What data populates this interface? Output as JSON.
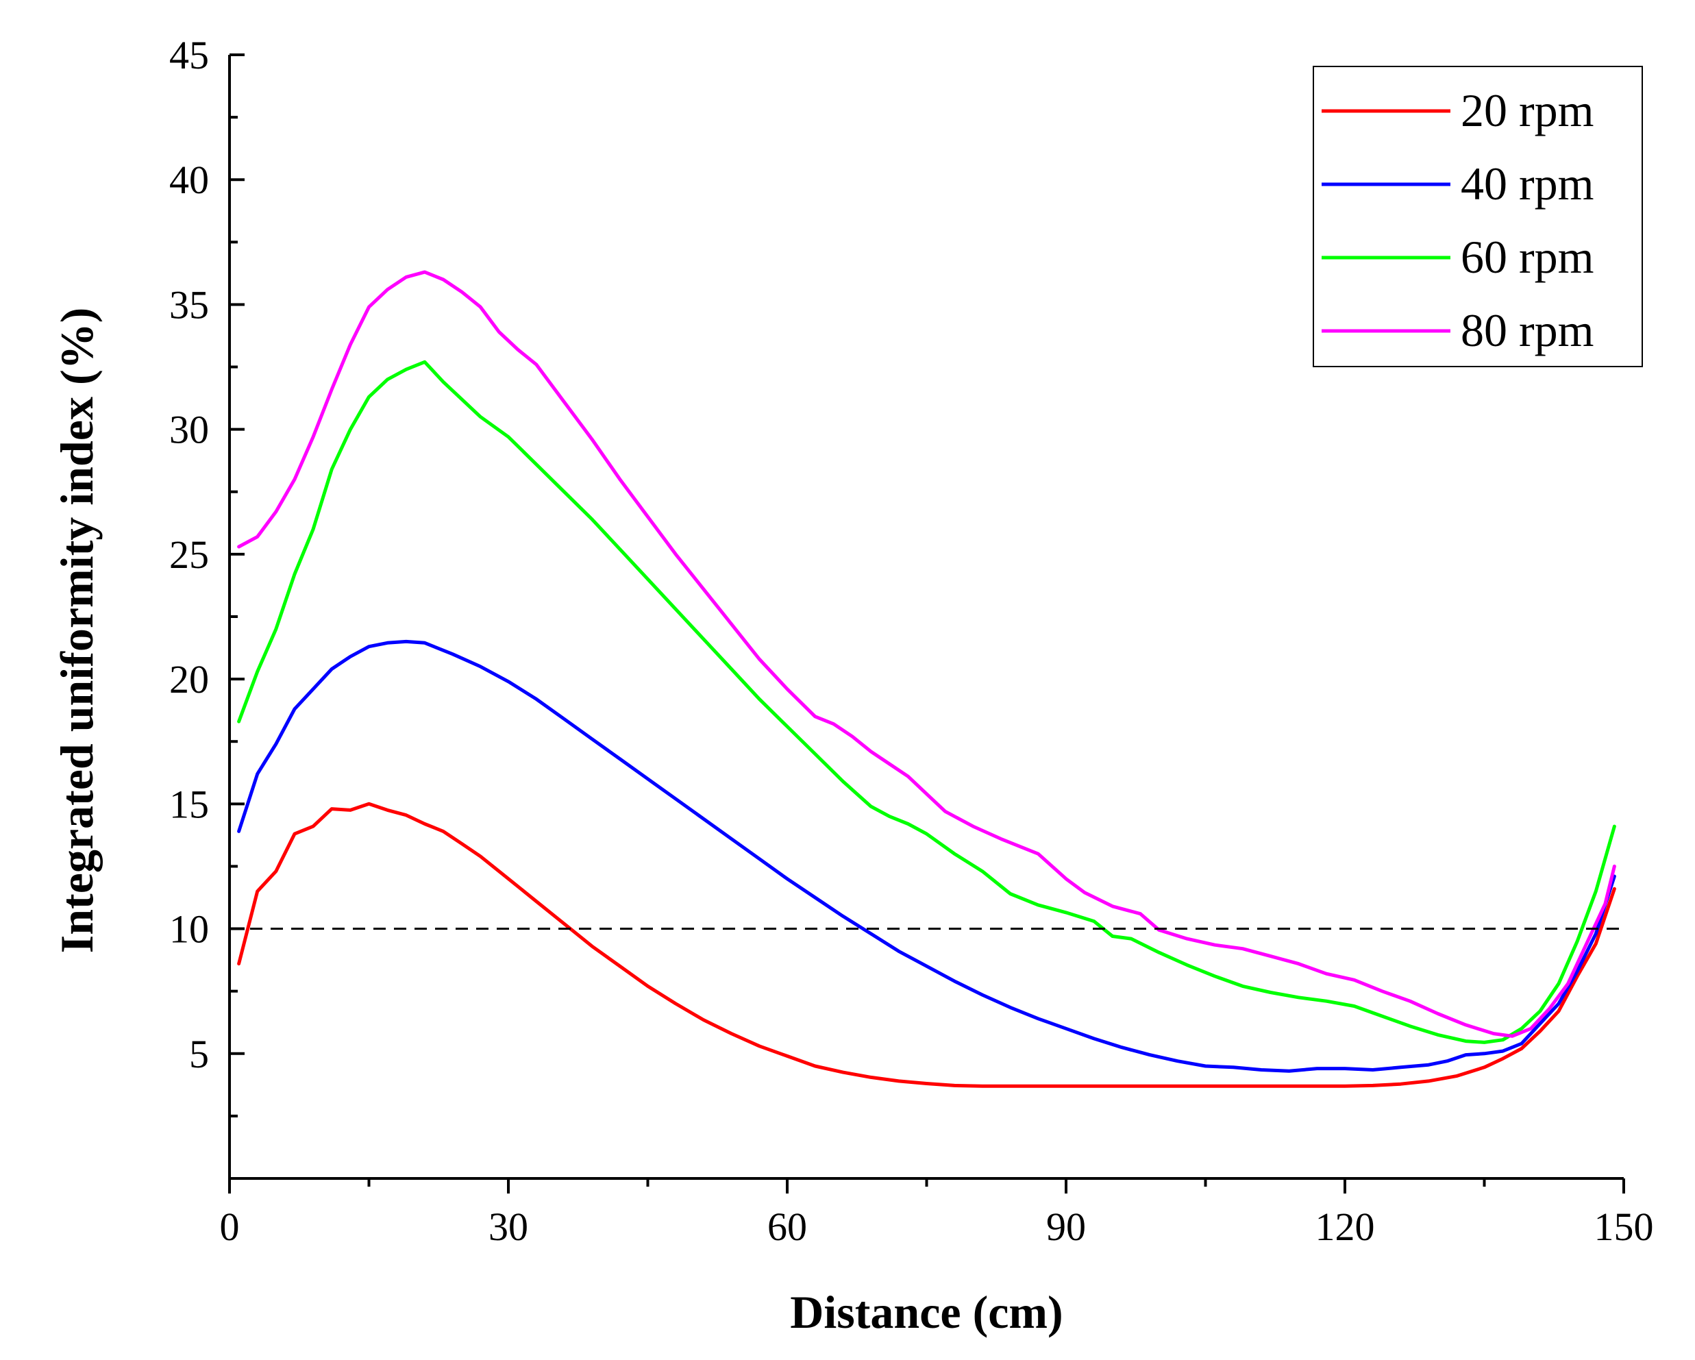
{
  "chart_data": {
    "type": "line",
    "title": "",
    "xlabel": "Distance (cm)",
    "ylabel": "Integrated uniformity index (%)",
    "xlim": [
      0,
      150
    ],
    "ylim": [
      0,
      45
    ],
    "xticks": [
      0,
      30,
      60,
      90,
      120,
      150
    ],
    "yticks": [
      5,
      10,
      15,
      20,
      25,
      30,
      35,
      40,
      45
    ],
    "xtick_labels": [
      "0",
      "30",
      "60",
      "90",
      "120",
      "150"
    ],
    "ytick_labels": [
      "5",
      "10",
      "15",
      "20",
      "25",
      "30",
      "35",
      "40",
      "45"
    ],
    "grid": false,
    "legend_position": "top-right",
    "reference_line": {
      "y": 10,
      "style": "dashed",
      "color": "#000000"
    },
    "series": [
      {
        "name": "20 rpm",
        "color": "#ff0000",
        "points": [
          [
            1,
            8.6
          ],
          [
            3,
            11.5
          ],
          [
            5,
            12.3
          ],
          [
            7,
            13.8
          ],
          [
            9,
            14.1
          ],
          [
            11,
            14.8
          ],
          [
            13,
            14.75
          ],
          [
            15,
            15.0
          ],
          [
            17,
            14.75
          ],
          [
            19,
            14.55
          ],
          [
            21,
            14.2
          ],
          [
            23,
            13.9
          ],
          [
            25,
            13.4
          ],
          [
            27,
            12.9
          ],
          [
            29,
            12.3
          ],
          [
            31,
            11.7
          ],
          [
            33,
            11.1
          ],
          [
            35,
            10.5
          ],
          [
            37,
            9.9
          ],
          [
            39,
            9.3
          ],
          [
            42,
            8.5
          ],
          [
            45,
            7.7
          ],
          [
            48,
            7.0
          ],
          [
            51,
            6.35
          ],
          [
            54,
            5.8
          ],
          [
            57,
            5.3
          ],
          [
            60,
            4.9
          ],
          [
            63,
            4.5
          ],
          [
            66,
            4.25
          ],
          [
            69,
            4.05
          ],
          [
            72,
            3.9
          ],
          [
            75,
            3.8
          ],
          [
            78,
            3.72
          ],
          [
            81,
            3.7
          ],
          [
            85,
            3.7
          ],
          [
            90,
            3.7
          ],
          [
            95,
            3.7
          ],
          [
            100,
            3.7
          ],
          [
            105,
            3.7
          ],
          [
            110,
            3.7
          ],
          [
            115,
            3.7
          ],
          [
            120,
            3.7
          ],
          [
            123,
            3.72
          ],
          [
            126,
            3.78
          ],
          [
            129,
            3.9
          ],
          [
            132,
            4.1
          ],
          [
            135,
            4.45
          ],
          [
            137,
            4.8
          ],
          [
            139,
            5.2
          ],
          [
            141,
            5.9
          ],
          [
            143,
            6.7
          ],
          [
            145,
            8.1
          ],
          [
            147,
            9.4
          ],
          [
            149,
            11.6
          ]
        ]
      },
      {
        "name": "40 rpm",
        "color": "#0000ff",
        "points": [
          [
            1,
            13.9
          ],
          [
            3,
            16.2
          ],
          [
            5,
            17.4
          ],
          [
            7,
            18.8
          ],
          [
            9,
            19.6
          ],
          [
            11,
            20.4
          ],
          [
            13,
            20.9
          ],
          [
            15,
            21.3
          ],
          [
            17,
            21.45
          ],
          [
            19,
            21.5
          ],
          [
            21,
            21.45
          ],
          [
            24,
            21.0
          ],
          [
            27,
            20.5
          ],
          [
            30,
            19.9
          ],
          [
            33,
            19.2
          ],
          [
            36,
            18.4
          ],
          [
            39,
            17.6
          ],
          [
            42,
            16.8
          ],
          [
            45,
            16.0
          ],
          [
            48,
            15.2
          ],
          [
            51,
            14.4
          ],
          [
            54,
            13.6
          ],
          [
            57,
            12.8
          ],
          [
            60,
            12.0
          ],
          [
            63,
            11.25
          ],
          [
            66,
            10.5
          ],
          [
            69,
            9.8
          ],
          [
            72,
            9.1
          ],
          [
            75,
            8.5
          ],
          [
            78,
            7.9
          ],
          [
            81,
            7.35
          ],
          [
            84,
            6.85
          ],
          [
            87,
            6.4
          ],
          [
            90,
            6.0
          ],
          [
            93,
            5.6
          ],
          [
            96,
            5.25
          ],
          [
            99,
            4.95
          ],
          [
            102,
            4.7
          ],
          [
            105,
            4.5
          ],
          [
            108,
            4.45
          ],
          [
            111,
            4.35
          ],
          [
            114,
            4.3
          ],
          [
            117,
            4.4
          ],
          [
            120,
            4.4
          ],
          [
            123,
            4.35
          ],
          [
            126,
            4.45
          ],
          [
            129,
            4.55
          ],
          [
            131,
            4.7
          ],
          [
            133,
            4.95
          ],
          [
            135,
            5.0
          ],
          [
            137,
            5.1
          ],
          [
            139,
            5.4
          ],
          [
            141,
            6.2
          ],
          [
            143,
            7.0
          ],
          [
            145,
            8.3
          ],
          [
            147,
            9.8
          ],
          [
            149,
            12.1
          ]
        ]
      },
      {
        "name": "60 rpm",
        "color": "#00ff00",
        "points": [
          [
            1,
            18.3
          ],
          [
            3,
            20.3
          ],
          [
            5,
            22.0
          ],
          [
            7,
            24.2
          ],
          [
            9,
            26.0
          ],
          [
            11,
            28.4
          ],
          [
            13,
            30.0
          ],
          [
            15,
            31.3
          ],
          [
            17,
            32.0
          ],
          [
            19,
            32.4
          ],
          [
            21,
            32.7
          ],
          [
            23,
            31.9
          ],
          [
            25,
            31.2
          ],
          [
            27,
            30.5
          ],
          [
            30,
            29.7
          ],
          [
            33,
            28.6
          ],
          [
            36,
            27.5
          ],
          [
            39,
            26.4
          ],
          [
            42,
            25.2
          ],
          [
            45,
            24.0
          ],
          [
            48,
            22.8
          ],
          [
            51,
            21.6
          ],
          [
            54,
            20.4
          ],
          [
            57,
            19.2
          ],
          [
            60,
            18.1
          ],
          [
            63,
            17.0
          ],
          [
            66,
            15.9
          ],
          [
            69,
            14.9
          ],
          [
            71,
            14.5
          ],
          [
            73,
            14.2
          ],
          [
            75,
            13.8
          ],
          [
            78,
            13.0
          ],
          [
            81,
            12.3
          ],
          [
            84,
            11.4
          ],
          [
            87,
            10.95
          ],
          [
            90,
            10.65
          ],
          [
            93,
            10.3
          ],
          [
            95,
            9.7
          ],
          [
            97,
            9.6
          ],
          [
            100,
            9.05
          ],
          [
            103,
            8.55
          ],
          [
            106,
            8.1
          ],
          [
            109,
            7.7
          ],
          [
            112,
            7.45
          ],
          [
            115,
            7.25
          ],
          [
            118,
            7.1
          ],
          [
            121,
            6.9
          ],
          [
            124,
            6.5
          ],
          [
            127,
            6.1
          ],
          [
            130,
            5.75
          ],
          [
            133,
            5.5
          ],
          [
            135,
            5.45
          ],
          [
            137,
            5.55
          ],
          [
            139,
            6.0
          ],
          [
            141,
            6.7
          ],
          [
            143,
            7.8
          ],
          [
            145,
            9.5
          ],
          [
            147,
            11.5
          ],
          [
            149,
            14.1
          ]
        ]
      },
      {
        "name": "80 rpm",
        "color": "#ff00ff",
        "points": [
          [
            1,
            25.3
          ],
          [
            3,
            25.7
          ],
          [
            5,
            26.7
          ],
          [
            7,
            28.0
          ],
          [
            9,
            29.7
          ],
          [
            11,
            31.6
          ],
          [
            13,
            33.4
          ],
          [
            15,
            34.9
          ],
          [
            17,
            35.6
          ],
          [
            19,
            36.1
          ],
          [
            21,
            36.3
          ],
          [
            23,
            36.0
          ],
          [
            25,
            35.5
          ],
          [
            27,
            34.9
          ],
          [
            29,
            33.9
          ],
          [
            31,
            33.2
          ],
          [
            33,
            32.6
          ],
          [
            36,
            31.1
          ],
          [
            39,
            29.6
          ],
          [
            42,
            28.0
          ],
          [
            45,
            26.5
          ],
          [
            48,
            25.0
          ],
          [
            51,
            23.6
          ],
          [
            54,
            22.2
          ],
          [
            57,
            20.8
          ],
          [
            60,
            19.6
          ],
          [
            63,
            18.5
          ],
          [
            65,
            18.2
          ],
          [
            67,
            17.7
          ],
          [
            69,
            17.1
          ],
          [
            71,
            16.6
          ],
          [
            73,
            16.1
          ],
          [
            75,
            15.4
          ],
          [
            77,
            14.7
          ],
          [
            80,
            14.1
          ],
          [
            83,
            13.6
          ],
          [
            87,
            13.0
          ],
          [
            90,
            12.0
          ],
          [
            92,
            11.45
          ],
          [
            95,
            10.9
          ],
          [
            98,
            10.6
          ],
          [
            100,
            9.95
          ],
          [
            103,
            9.6
          ],
          [
            106,
            9.35
          ],
          [
            109,
            9.2
          ],
          [
            112,
            8.9
          ],
          [
            115,
            8.6
          ],
          [
            118,
            8.2
          ],
          [
            121,
            7.95
          ],
          [
            124,
            7.5
          ],
          [
            127,
            7.1
          ],
          [
            130,
            6.6
          ],
          [
            133,
            6.15
          ],
          [
            136,
            5.8
          ],
          [
            138,
            5.7
          ],
          [
            140,
            6.0
          ],
          [
            142,
            6.8
          ],
          [
            144,
            7.8
          ],
          [
            146,
            9.4
          ],
          [
            148,
            11.0
          ],
          [
            149,
            12.5
          ]
        ]
      }
    ]
  }
}
